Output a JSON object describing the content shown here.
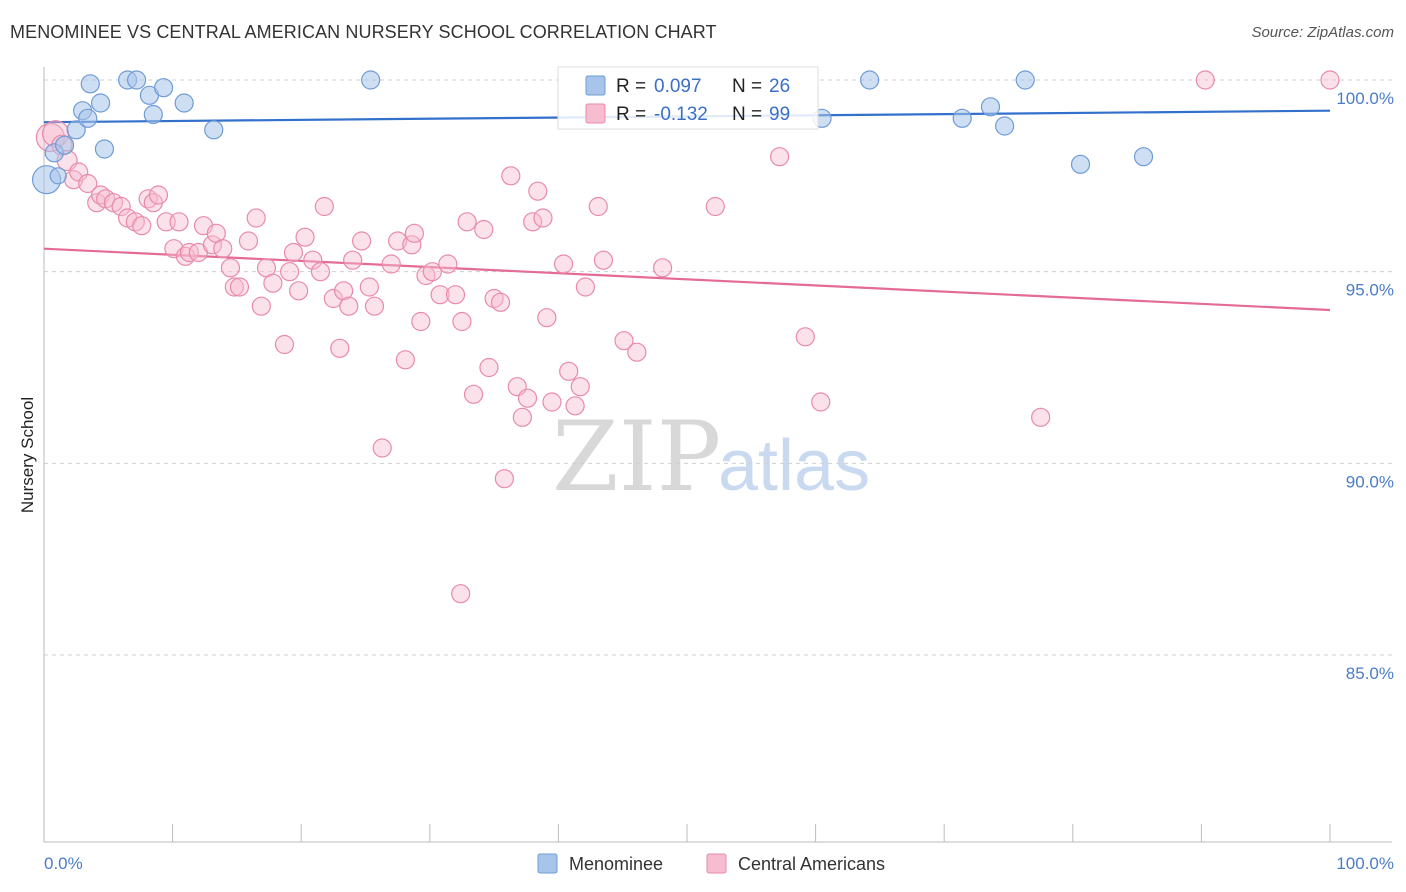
{
  "title": "MENOMINEE VS CENTRAL AMERICAN NURSERY SCHOOL CORRELATION CHART",
  "source": "Source: ZipAtlas.com",
  "watermark": {
    "zip": "ZIP",
    "atlas": "atlas"
  },
  "legend_top": {
    "rows": [
      {
        "r_label": "R = ",
        "r_value": "0.097",
        "n_label": "N = ",
        "n_value": "26"
      },
      {
        "r_label": "R = ",
        "r_value": "-0.132",
        "n_label": "N = ",
        "n_value": "99"
      }
    ]
  },
  "legend_bottom": {
    "series": [
      "Menominee",
      "Central Americans"
    ]
  },
  "colors": {
    "blue_fill": "#a8c4ea",
    "blue_stroke": "#6f9bd6",
    "blue_line": "#3370cc",
    "pink_fill": "#f6bcd0",
    "pink_stroke": "#e98aab",
    "pink_line": "#e36b94",
    "grid": "#cfcfcf",
    "axis_text": "#4a7cc7"
  },
  "chart_data": {
    "type": "scatter",
    "title": "MENOMINEE VS CENTRAL AMERICAN NURSERY SCHOOL CORRELATION CHART",
    "xlabel": "",
    "ylabel": "Nursery School",
    "xlim": [
      0,
      100
    ],
    "ylim": [
      80.5,
      100.4
    ],
    "x_tick_labels": [
      "0.0%",
      "100.0%"
    ],
    "y_ticks": [
      {
        "value": 100,
        "label": "100.0%"
      },
      {
        "value": 95,
        "label": "95.0%"
      },
      {
        "value": 90,
        "label": "90.0%"
      },
      {
        "value": 85,
        "label": "85.0%"
      }
    ],
    "grid": true,
    "legend_position": "top-center",
    "series": [
      {
        "name": "Menominee",
        "color": "#6f9bd6",
        "trend": {
          "y_at_x0": 98.9,
          "y_at_x100": 99.2
        },
        "points": [
          [
            0.2,
            97.4,
            14
          ],
          [
            0.8,
            98.1,
            9
          ],
          [
            1.1,
            97.5,
            8
          ],
          [
            1.6,
            98.3,
            9
          ],
          [
            2.5,
            98.7,
            9
          ],
          [
            3.0,
            99.2,
            9
          ],
          [
            3.4,
            99.0,
            9
          ],
          [
            3.6,
            99.9,
            9
          ],
          [
            4.4,
            99.4,
            9
          ],
          [
            4.7,
            98.2,
            9
          ],
          [
            6.5,
            100.0,
            9
          ],
          [
            7.2,
            100.0,
            9
          ],
          [
            8.2,
            99.6,
            9
          ],
          [
            8.5,
            99.1,
            9
          ],
          [
            9.3,
            99.8,
            9
          ],
          [
            10.9,
            99.4,
            9
          ],
          [
            13.2,
            98.7,
            9
          ],
          [
            25.4,
            100.0,
            9
          ],
          [
            60.5,
            99.0,
            9
          ],
          [
            64.2,
            100.0,
            9
          ],
          [
            71.4,
            99.0,
            9
          ],
          [
            73.6,
            99.3,
            9
          ],
          [
            74.7,
            98.8,
            9
          ],
          [
            76.3,
            100.0,
            9
          ],
          [
            80.6,
            97.8,
            9
          ],
          [
            85.5,
            98.0,
            9
          ]
        ]
      },
      {
        "name": "Central Americans",
        "color": "#e98aab",
        "trend": {
          "y_at_x0": 95.6,
          "y_at_x100": 94.0
        },
        "points": [
          [
            0.5,
            98.5,
            14
          ],
          [
            0.9,
            98.6,
            13
          ],
          [
            1.4,
            98.3,
            10
          ],
          [
            1.8,
            97.9,
            10
          ],
          [
            2.3,
            97.4,
            9
          ],
          [
            2.7,
            97.6,
            9
          ],
          [
            3.4,
            97.3,
            9
          ],
          [
            4.1,
            96.8,
            9
          ],
          [
            4.4,
            97.0,
            9
          ],
          [
            4.8,
            96.9,
            9
          ],
          [
            5.4,
            96.8,
            9
          ],
          [
            6.0,
            96.7,
            9
          ],
          [
            6.5,
            96.4,
            9
          ],
          [
            7.1,
            96.3,
            9
          ],
          [
            7.6,
            96.2,
            9
          ],
          [
            8.1,
            96.9,
            9
          ],
          [
            8.5,
            96.8,
            9
          ],
          [
            8.9,
            97.0,
            9
          ],
          [
            9.5,
            96.3,
            9
          ],
          [
            10.1,
            95.6,
            9
          ],
          [
            10.5,
            96.3,
            9
          ],
          [
            11.0,
            95.4,
            9
          ],
          [
            11.3,
            95.5,
            9
          ],
          [
            12.0,
            95.5,
            9
          ],
          [
            12.4,
            96.2,
            9
          ],
          [
            13.1,
            95.7,
            9
          ],
          [
            13.4,
            96.0,
            9
          ],
          [
            13.9,
            95.6,
            9
          ],
          [
            14.5,
            95.1,
            9
          ],
          [
            14.8,
            94.6,
            9
          ],
          [
            15.2,
            94.6,
            9
          ],
          [
            15.9,
            95.8,
            9
          ],
          [
            16.5,
            96.4,
            9
          ],
          [
            16.9,
            94.1,
            9
          ],
          [
            17.3,
            95.1,
            9
          ],
          [
            17.8,
            94.7,
            9
          ],
          [
            18.7,
            93.1,
            9
          ],
          [
            19.1,
            95.0,
            9
          ],
          [
            19.4,
            95.5,
            9
          ],
          [
            19.8,
            94.5,
            9
          ],
          [
            20.3,
            95.9,
            9
          ],
          [
            20.9,
            95.3,
            9
          ],
          [
            21.5,
            95.0,
            9
          ],
          [
            21.8,
            96.7,
            9
          ],
          [
            22.5,
            94.3,
            9
          ],
          [
            23.0,
            93.0,
            9
          ],
          [
            23.3,
            94.5,
            9
          ],
          [
            23.7,
            94.1,
            9
          ],
          [
            24.0,
            95.3,
            9
          ],
          [
            24.7,
            95.8,
            9
          ],
          [
            25.3,
            94.6,
            9
          ],
          [
            25.7,
            94.1,
            9
          ],
          [
            26.3,
            90.4,
            9
          ],
          [
            27.0,
            95.2,
            9
          ],
          [
            27.5,
            95.8,
            9
          ],
          [
            28.1,
            92.7,
            9
          ],
          [
            28.6,
            95.7,
            9
          ],
          [
            29.3,
            93.7,
            9
          ],
          [
            29.7,
            94.9,
            9
          ],
          [
            30.2,
            95.0,
            9
          ],
          [
            30.8,
            94.4,
            9
          ],
          [
            31.4,
            95.2,
            9
          ],
          [
            32.0,
            94.4,
            9
          ],
          [
            32.5,
            93.7,
            9
          ],
          [
            32.9,
            96.3,
            9
          ],
          [
            33.4,
            91.8,
            9
          ],
          [
            34.2,
            96.1,
            9
          ],
          [
            34.6,
            92.5,
            9
          ],
          [
            35.0,
            94.3,
            9
          ],
          [
            35.5,
            94.2,
            9
          ],
          [
            35.8,
            89.6,
            9
          ],
          [
            36.3,
            97.5,
            9
          ],
          [
            36.8,
            92.0,
            9
          ],
          [
            37.2,
            91.2,
            9
          ],
          [
            37.6,
            91.7,
            9
          ],
          [
            38.0,
            96.3,
            9
          ],
          [
            38.4,
            97.1,
            9
          ],
          [
            38.8,
            96.4,
            9
          ],
          [
            39.1,
            93.8,
            9
          ],
          [
            39.5,
            91.6,
            9
          ],
          [
            40.4,
            95.2,
            9
          ],
          [
            40.8,
            92.4,
            9
          ],
          [
            41.3,
            91.5,
            9
          ],
          [
            41.7,
            92.0,
            9
          ],
          [
            42.1,
            94.6,
            9
          ],
          [
            43.1,
            96.7,
            9
          ],
          [
            43.5,
            95.3,
            9
          ],
          [
            45.1,
            93.2,
            9
          ],
          [
            46.1,
            92.9,
            9
          ],
          [
            48.1,
            95.1,
            9
          ],
          [
            52.2,
            96.7,
            9
          ],
          [
            57.2,
            98.0,
            9
          ],
          [
            59.2,
            93.3,
            9
          ],
          [
            60.4,
            91.6,
            9
          ],
          [
            77.5,
            91.2,
            9
          ],
          [
            90.3,
            100.0,
            9
          ],
          [
            100.0,
            100.0,
            9
          ],
          [
            28.8,
            96.0,
            9
          ],
          [
            32.4,
            86.6,
            9
          ]
        ]
      }
    ]
  }
}
